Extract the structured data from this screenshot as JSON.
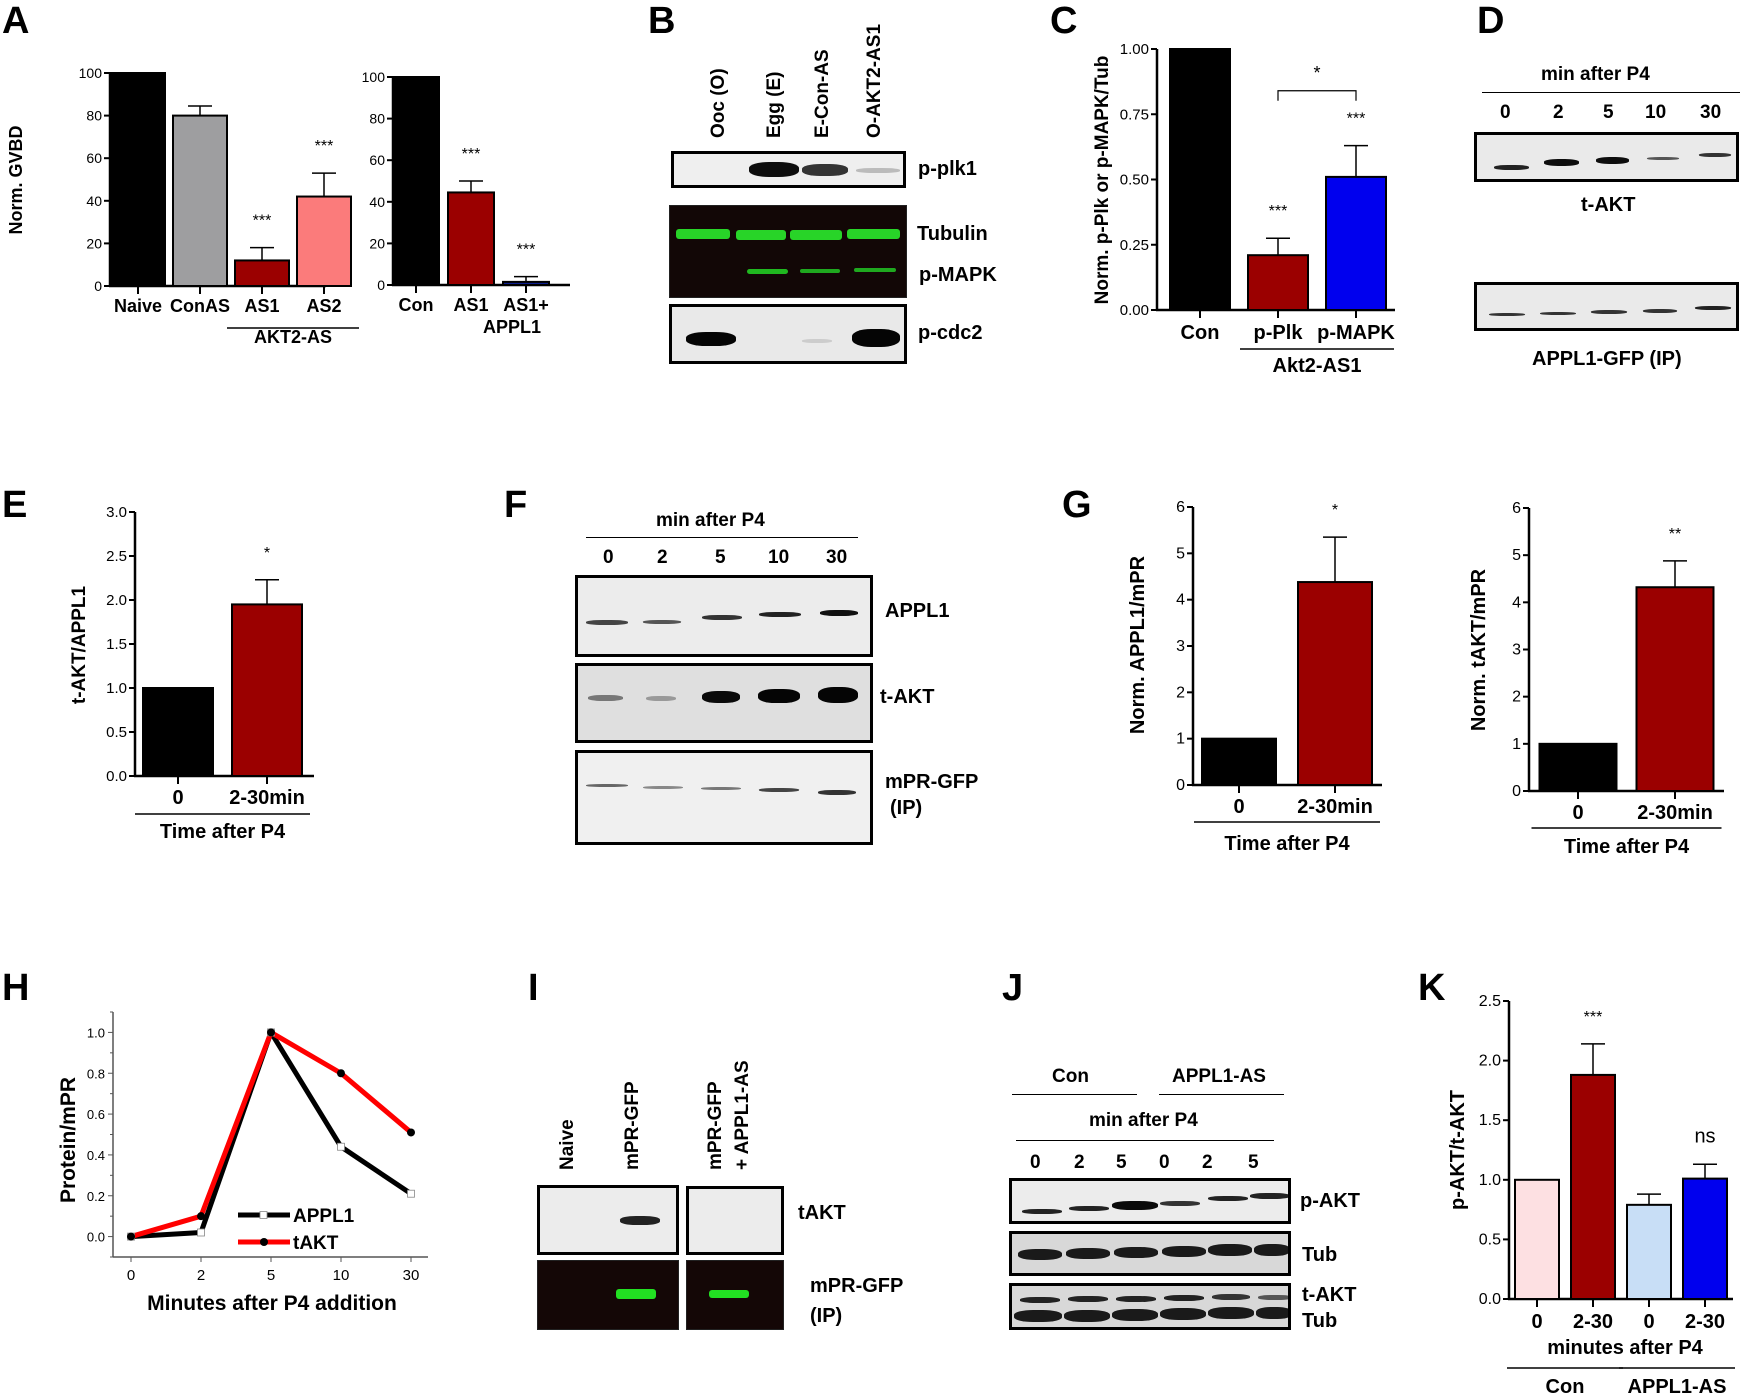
{
  "panel_letters": {
    "A": "A",
    "B": "B",
    "C": "C",
    "D": "D",
    "E": "E",
    "F": "F",
    "G": "G",
    "H": "H",
    "I": "I",
    "J": "J",
    "K": "K"
  },
  "colors": {
    "black": "#000000",
    "gray": "#9e9ea0",
    "dark_red": "#9b0000",
    "pink": "#fb7b7b",
    "navy": "#0e1e8c",
    "blue": "#0000ee",
    "light_pink": "#fde0e2",
    "light_blue": "#c8def6",
    "red_line": "#ff0000",
    "gfp_green": "#22e022"
  },
  "chart_data": [
    {
      "id": "A-left",
      "type": "bar",
      "title": "",
      "ylabel": "Norm. GVBD",
      "xlabel": "",
      "ylim": [
        0,
        100
      ],
      "yticks": [
        "0",
        "20",
        "40",
        "60",
        "80",
        "100"
      ],
      "categories": [
        "Naive",
        "ConAS",
        "AS1",
        "AS2"
      ],
      "values": [
        100,
        80,
        12,
        42
      ],
      "errors": [
        0,
        4.5,
        6,
        11
      ],
      "bar_colors": [
        "#000000",
        "#9e9ea0",
        "#9b0000",
        "#fb7b7b"
      ],
      "significance": [
        "",
        "",
        "***",
        "***"
      ],
      "group_labels": [
        {
          "label": "AKT2-AS",
          "span": [
            "AS1",
            "AS2"
          ]
        }
      ]
    },
    {
      "id": "A-right",
      "type": "bar",
      "ylabel": "",
      "ylim": [
        0,
        100
      ],
      "yticks": [
        "0",
        "20",
        "40",
        "60",
        "80",
        "100"
      ],
      "categories": [
        "Con",
        "AS1",
        "AS1+ APPL1"
      ],
      "category_lines": [
        [
          "Con"
        ],
        [
          "AS1"
        ],
        [
          "AS1+",
          "APPL1"
        ]
      ],
      "values": [
        100,
        44.5,
        1.5
      ],
      "errors": [
        0,
        5.5,
        2.5
      ],
      "bar_colors": [
        "#000000",
        "#9b0000",
        "#0e1e8c"
      ],
      "significance": [
        "",
        "***",
        "***"
      ]
    },
    {
      "id": "C",
      "type": "bar",
      "ylabel": "Norm. p-Plk or p-MAPK/Tub",
      "ylim": [
        0,
        1.0
      ],
      "yticks": [
        "0.00",
        "0.25",
        "0.50",
        "0.75",
        "1.00"
      ],
      "categories": [
        "Con",
        "p-Plk",
        "p-MAPK"
      ],
      "values": [
        1.0,
        0.21,
        0.51
      ],
      "errors": [
        0,
        0.065,
        0.12
      ],
      "bar_colors": [
        "#000000",
        "#9b0000",
        "#0000ee"
      ],
      "significance": [
        "",
        "***",
        "***"
      ],
      "bracket": {
        "from": "p-Plk",
        "to": "p-MAPK",
        "label": "*"
      },
      "group_labels": [
        {
          "label": "Akt2-AS1",
          "span": [
            "p-Plk",
            "p-MAPK"
          ]
        }
      ]
    },
    {
      "id": "E",
      "type": "bar",
      "ylabel": "t-AKT/APPL1",
      "ylim": [
        0,
        3.0
      ],
      "yticks": [
        "0.0",
        "0.5",
        "1.0",
        "1.5",
        "2.0",
        "2.5",
        "3.0"
      ],
      "categories": [
        "0",
        "2-30min"
      ],
      "values": [
        1.0,
        1.95
      ],
      "errors": [
        0,
        0.28
      ],
      "bar_colors": [
        "#000000",
        "#9b0000"
      ],
      "significance": [
        "",
        "*"
      ],
      "group_labels": [
        {
          "label": "Time after P4",
          "span": [
            "0",
            "2-30min"
          ]
        }
      ]
    },
    {
      "id": "G-left",
      "type": "bar",
      "ylabel": "Norm. APPL1/mPR",
      "ylim": [
        0,
        6
      ],
      "yticks": [
        "0",
        "1",
        "2",
        "3",
        "4",
        "5",
        "6"
      ],
      "categories": [
        "0",
        "2-30min"
      ],
      "values": [
        1.0,
        4.38
      ],
      "errors": [
        0,
        0.97
      ],
      "bar_colors": [
        "#000000",
        "#9b0000"
      ],
      "significance": [
        "",
        "*"
      ],
      "group_labels": [
        {
          "label": "Time after P4",
          "span": [
            "0",
            "2-30min"
          ]
        }
      ]
    },
    {
      "id": "G-right",
      "type": "bar",
      "ylabel": "Norm. tAKT/mPR",
      "ylim": [
        0,
        6
      ],
      "yticks": [
        "0",
        "1",
        "2",
        "3",
        "4",
        "5",
        "6"
      ],
      "categories": [
        "0",
        "2-30min"
      ],
      "values": [
        1.0,
        4.32
      ],
      "errors": [
        0,
        0.56
      ],
      "bar_colors": [
        "#000000",
        "#9b0000"
      ],
      "significance": [
        "",
        "**"
      ],
      "group_labels": [
        {
          "label": "Time after P4",
          "span": [
            "0",
            "2-30min"
          ]
        }
      ]
    },
    {
      "id": "H",
      "type": "line",
      "ylabel": "Protein/mPR",
      "xlabel": "Minutes after P4 addition",
      "x": [
        "0",
        "2",
        "5",
        "10",
        "30"
      ],
      "ylim": [
        -0.1,
        1.1
      ],
      "yticks": [
        "0.0",
        "0.2",
        "0.4",
        "0.6",
        "0.8",
        "1.0"
      ],
      "series": [
        {
          "name": "APPL1",
          "values": [
            0.0,
            0.02,
            1.0,
            0.44,
            0.21
          ],
          "color": "#000000",
          "marker": "open-square"
        },
        {
          "name": "tAKT",
          "values": [
            0.0,
            0.1,
            1.0,
            0.8,
            0.51
          ],
          "color": "#ff0000",
          "marker": "filled-circle"
        }
      ],
      "legend": "bottom-right"
    },
    {
      "id": "K",
      "type": "bar",
      "ylabel": "p-AKT/t-AKT",
      "ylim": [
        0,
        2.5
      ],
      "yticks": [
        "0.0",
        "0.5",
        "1.0",
        "1.5",
        "2.0",
        "2.5"
      ],
      "categories": [
        "0",
        "2-30",
        "0",
        "2-30"
      ],
      "values": [
        1.0,
        1.88,
        0.79,
        1.01
      ],
      "errors": [
        0,
        0.26,
        0.09,
        0.12
      ],
      "bar_colors": [
        "#fde0e2",
        "#9b0000",
        "#c8def6",
        "#0000ee"
      ],
      "significance": [
        "",
        "***",
        "",
        "ns"
      ],
      "axis_caption": "minutes after P4",
      "group_labels": [
        {
          "label": "Con",
          "span": [
            0,
            1
          ]
        },
        {
          "label": "APPL1-AS",
          "span": [
            2,
            3
          ]
        }
      ]
    }
  ],
  "blots": {
    "B": {
      "lanes": [
        "Ooc (O)",
        "Egg (E)",
        "E-Con-AS",
        "O-AKT2-AS1"
      ],
      "rows": [
        "p-plk1",
        "Tubulin",
        "p-MAPK",
        "p-cdc2"
      ]
    },
    "D": {
      "header": "min after P4",
      "lanes": [
        "0",
        "2",
        "5",
        "10",
        "30"
      ],
      "rows": [
        "t-AKT",
        "APPL1-GFP (IP)"
      ]
    },
    "F": {
      "header": "min after P4",
      "lanes": [
        "0",
        "2",
        "5",
        "10",
        "30"
      ],
      "rows": [
        "APPL1",
        "t-AKT",
        "mPR-GFP",
        "(IP)"
      ]
    },
    "I": {
      "lanes": [
        "Naive",
        "mPR-GFP",
        "mPR-GFP",
        "+ APPL1-AS"
      ],
      "rows": [
        "tAKT",
        "mPR-GFP",
        "(IP)"
      ]
    },
    "J": {
      "groups": [
        "Con",
        "APPL1-AS"
      ],
      "header": "min after P4",
      "lanes": [
        "0",
        "2",
        "5",
        "0",
        "2",
        "5"
      ],
      "rows": [
        "p-AKT",
        "Tub",
        "t-AKT",
        "Tub"
      ]
    }
  }
}
